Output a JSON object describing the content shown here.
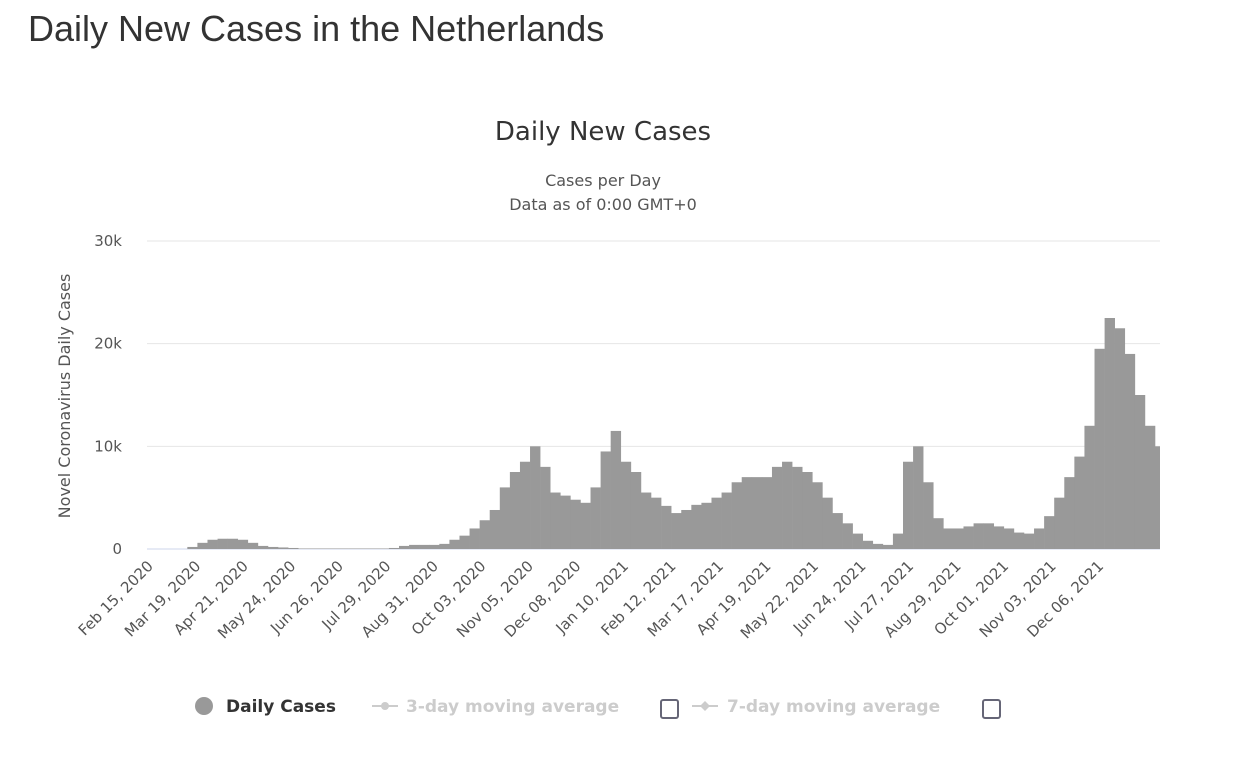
{
  "page_title": "Daily New Cases in the Netherlands",
  "chart_data": {
    "type": "bar",
    "title": "Daily New Cases",
    "subtitle": [
      "Cases per Day",
      "Data as of 0:00 GMT+0"
    ],
    "ylabel": "Novel Coronavirus Daily Cases",
    "xlabel": "",
    "ylim": [
      0,
      30000
    ],
    "y_ticks": [
      {
        "v": 0,
        "label": "0"
      },
      {
        "v": 10000,
        "label": "10k"
      },
      {
        "v": 20000,
        "label": "20k"
      },
      {
        "v": 30000,
        "label": "30k"
      }
    ],
    "grid": true,
    "x_start": "2020-02-15",
    "x_step_days": 7,
    "x_tick_step_days": 33,
    "x_ticks": [
      "Feb 15, 2020",
      "Mar 19, 2020",
      "Apr 21, 2020",
      "May 24, 2020",
      "Jun 26, 2020",
      "Jul 29, 2020",
      "Aug 31, 2020",
      "Oct 03, 2020",
      "Nov 05, 2020",
      "Dec 08, 2020",
      "Jan 10, 2021",
      "Feb 12, 2021",
      "Mar 17, 2021",
      "Apr 19, 2021",
      "May 22, 2021",
      "Jun 24, 2021",
      "Jul 27, 2021",
      "Aug 29, 2021",
      "Oct 01, 2021",
      "Nov 03, 2021",
      "Dec 06, 2021"
    ],
    "series": [
      {
        "name": "Daily Cases",
        "color": "#999999",
        "values": [
          0,
          0,
          0,
          0,
          200,
          600,
          900,
          1000,
          1000,
          900,
          600,
          300,
          200,
          150,
          100,
          50,
          50,
          50,
          50,
          50,
          50,
          50,
          50,
          50,
          100,
          300,
          400,
          400,
          400,
          500,
          900,
          1300,
          2000,
          2800,
          3800,
          6000,
          7500,
          8500,
          10000,
          8000,
          5500,
          5200,
          4800,
          4500,
          6000,
          9500,
          11500,
          8500,
          7500,
          5500,
          5000,
          4200,
          3500,
          3800,
          4300,
          4500,
          5000,
          5500,
          6500,
          7000,
          7000,
          7000,
          8000,
          8500,
          8000,
          7500,
          6500,
          5000,
          3500,
          2500,
          1500,
          800,
          500,
          400,
          1500,
          8500,
          10000,
          6500,
          3000,
          2000,
          2000,
          2200,
          2500,
          2500,
          2200,
          2000,
          1600,
          1500,
          2000,
          3200,
          5000,
          7000,
          9000,
          12000,
          19500,
          22500,
          21500,
          19000,
          15000,
          12000,
          10000
        ]
      }
    ],
    "legend": {
      "placement": "bottom",
      "items": [
        {
          "label": "Daily Cases",
          "active": true
        },
        {
          "label": "3-day moving average",
          "active": false
        },
        {
          "label": "7-day moving average",
          "active": false
        }
      ]
    }
  }
}
